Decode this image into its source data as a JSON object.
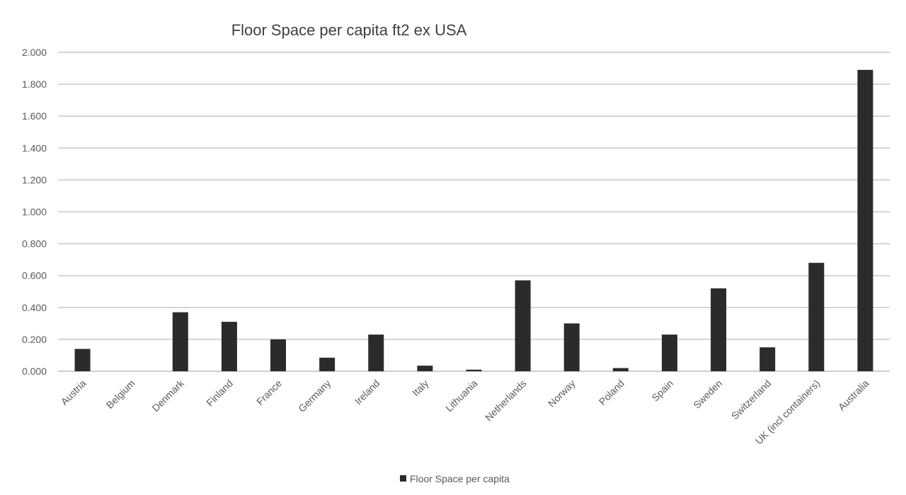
{
  "chart_data": {
    "type": "bar",
    "title": "Floor Space per capita ft2 ex USA",
    "xlabel": "",
    "ylabel": "",
    "ylim": [
      0,
      2.0
    ],
    "yticks": [
      "0.000",
      "0.200",
      "0.400",
      "0.600",
      "0.800",
      "1.000",
      "1.200",
      "1.400",
      "1.600",
      "1.800",
      "2.000"
    ],
    "ytick_values": [
      0,
      0.2,
      0.4,
      0.6,
      0.8,
      1.0,
      1.2,
      1.4,
      1.6,
      1.8,
      2.0
    ],
    "grid": true,
    "legend": "bottom-center",
    "categories": [
      "Austria",
      "Belgium",
      "Denmark",
      "Finland",
      "France",
      "Germany",
      "Ireland",
      "Italy",
      "Lithuania",
      "Netherlands",
      "Norway",
      "Poland",
      "Spain",
      "Sweden",
      "Switzerland",
      "UK (incl containers)",
      "Australia"
    ],
    "series": [
      {
        "name": "Floor Space per capita",
        "color": "#2b2b2b",
        "values": [
          0.14,
          0.0,
          0.37,
          0.31,
          0.2,
          0.085,
          0.23,
          0.035,
          0.01,
          0.57,
          0.3,
          0.02,
          0.23,
          0.52,
          0.15,
          0.68,
          1.89
        ]
      }
    ]
  }
}
